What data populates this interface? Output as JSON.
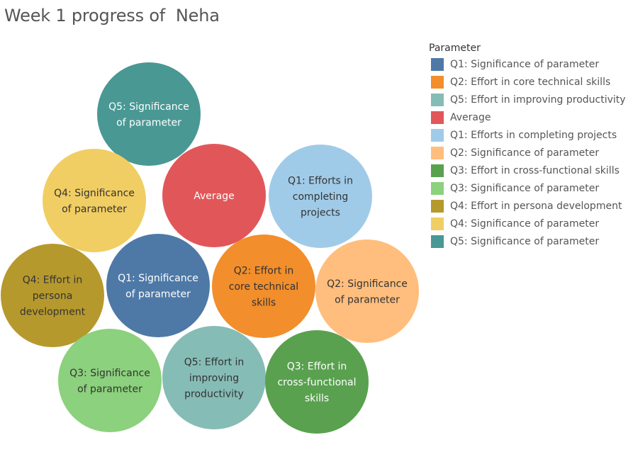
{
  "title": "Week 1 progress of  Neha",
  "legend": {
    "title": "Parameter",
    "items": [
      {
        "label": "Q1: Significance of parameter",
        "color": "#4e79a7"
      },
      {
        "label": "Q2: Effort in core technical skills",
        "color": "#f28e2b"
      },
      {
        "label": "Q5: Effort in improving productivity",
        "color": "#86bcb6"
      },
      {
        "label": "Average",
        "color": "#e15759"
      },
      {
        "label": "Q1: Efforts in completing projects",
        "color": "#a0cbe8"
      },
      {
        "label": "Q2: Significance of parameter",
        "color": "#ffbe7d"
      },
      {
        "label": "Q3: Effort in cross-functional skills",
        "color": "#59a14f"
      },
      {
        "label": "Q3: Significance of parameter",
        "color": "#8cd17d"
      },
      {
        "label": "Q4: Effort in persona development",
        "color": "#b6992d"
      },
      {
        "label": "Q4: Significance of parameter",
        "color": "#f1ce63"
      },
      {
        "label": "Q5: Significance of parameter",
        "color": "#499894"
      }
    ]
  },
  "chart_data": {
    "type": "bubble",
    "legend_position": "right",
    "sizes_equal": true,
    "bubbles": [
      {
        "lines": [
          "Q5: Significance",
          "of parameter"
        ],
        "color": "#499894",
        "text_color": "#ffffff"
      },
      {
        "lines": [
          "Q4: Significance",
          "of parameter"
        ],
        "color": "#f1ce63",
        "text_color": "#333333"
      },
      {
        "lines": [
          "Average"
        ],
        "color": "#e15759",
        "text_color": "#ffffff"
      },
      {
        "lines": [
          "Q1: Efforts in",
          "completing",
          "projects"
        ],
        "color": "#a0cbe8",
        "text_color": "#333333"
      },
      {
        "lines": [
          "Q4: Effort in",
          "persona",
          "development"
        ],
        "color": "#b6992d",
        "text_color": "#333333"
      },
      {
        "lines": [
          "Q1: Significance",
          "of parameter"
        ],
        "color": "#4e79a7",
        "text_color": "#ffffff"
      },
      {
        "lines": [
          "Q2: Effort in",
          "core technical",
          "skills"
        ],
        "color": "#f28e2b",
        "text_color": "#333333"
      },
      {
        "lines": [
          "Q2: Significance",
          "of parameter"
        ],
        "color": "#ffbe7d",
        "text_color": "#333333"
      },
      {
        "lines": [
          "Q3: Significance",
          "of parameter"
        ],
        "color": "#8cd17d",
        "text_color": "#333333"
      },
      {
        "lines": [
          "Q5: Effort in",
          "improving",
          "productivity"
        ],
        "color": "#86bcb6",
        "text_color": "#333333"
      },
      {
        "lines": [
          "Q3: Effort in",
          "cross-functional",
          "skills"
        ],
        "color": "#59a14f",
        "text_color": "#ffffff"
      }
    ]
  }
}
